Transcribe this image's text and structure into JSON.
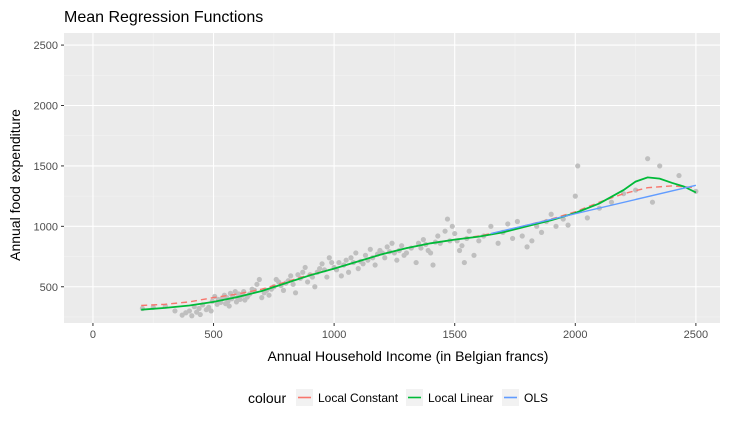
{
  "chart_data": {
    "type": "scatter",
    "title": "Mean Regression Functions",
    "xlabel": "Annual Household Income (in Belgian francs)",
    "ylabel": "Annual food expenditure",
    "xlim": [
      -120,
      2600
    ],
    "ylim": [
      200,
      2600
    ],
    "x_ticks": [
      0,
      500,
      1000,
      1500,
      2000,
      2500
    ],
    "y_ticks": [
      500,
      1000,
      1500,
      2000,
      2500
    ],
    "grid": true,
    "legend_position": "bottom",
    "legend_title": "colour",
    "points_color": "#bfbfbf",
    "points": [
      [
        205,
        320
      ],
      [
        250,
        330
      ],
      [
        300,
        340
      ],
      [
        340,
        300
      ],
      [
        370,
        265
      ],
      [
        385,
        285
      ],
      [
        400,
        300
      ],
      [
        410,
        260
      ],
      [
        420,
        335
      ],
      [
        430,
        290
      ],
      [
        440,
        320
      ],
      [
        445,
        270
      ],
      [
        455,
        350
      ],
      [
        470,
        310
      ],
      [
        480,
        330
      ],
      [
        490,
        300
      ],
      [
        495,
        380
      ],
      [
        505,
        420
      ],
      [
        515,
        355
      ],
      [
        520,
        395
      ],
      [
        530,
        370
      ],
      [
        535,
        400
      ],
      [
        545,
        430
      ],
      [
        550,
        360
      ],
      [
        555,
        410
      ],
      [
        560,
        380
      ],
      [
        565,
        340
      ],
      [
        570,
        445
      ],
      [
        575,
        400
      ],
      [
        580,
        420
      ],
      [
        590,
        460
      ],
      [
        595,
        375
      ],
      [
        600,
        410
      ],
      [
        605,
        440
      ],
      [
        610,
        395
      ],
      [
        620,
        430
      ],
      [
        625,
        460
      ],
      [
        630,
        390
      ],
      [
        640,
        415
      ],
      [
        650,
        440
      ],
      [
        660,
        480
      ],
      [
        670,
        470
      ],
      [
        680,
        520
      ],
      [
        690,
        560
      ],
      [
        700,
        410
      ],
      [
        710,
        450
      ],
      [
        720,
        470
      ],
      [
        730,
        430
      ],
      [
        740,
        480
      ],
      [
        750,
        500
      ],
      [
        760,
        560
      ],
      [
        770,
        540
      ],
      [
        780,
        510
      ],
      [
        790,
        470
      ],
      [
        800,
        530
      ],
      [
        810,
        550
      ],
      [
        820,
        590
      ],
      [
        830,
        520
      ],
      [
        840,
        450
      ],
      [
        850,
        600
      ],
      [
        860,
        570
      ],
      [
        870,
        620
      ],
      [
        880,
        660
      ],
      [
        890,
        540
      ],
      [
        900,
        600
      ],
      [
        910,
        580
      ],
      [
        920,
        500
      ],
      [
        930,
        620
      ],
      [
        940,
        650
      ],
      [
        950,
        690
      ],
      [
        960,
        640
      ],
      [
        970,
        580
      ],
      [
        980,
        740
      ],
      [
        990,
        700
      ],
      [
        1000,
        660
      ],
      [
        1010,
        640
      ],
      [
        1020,
        700
      ],
      [
        1030,
        590
      ],
      [
        1040,
        680
      ],
      [
        1050,
        720
      ],
      [
        1060,
        620
      ],
      [
        1070,
        740
      ],
      [
        1080,
        700
      ],
      [
        1090,
        780
      ],
      [
        1100,
        650
      ],
      [
        1110,
        710
      ],
      [
        1120,
        690
      ],
      [
        1130,
        760
      ],
      [
        1140,
        720
      ],
      [
        1150,
        810
      ],
      [
        1160,
        740
      ],
      [
        1170,
        680
      ],
      [
        1180,
        770
      ],
      [
        1190,
        800
      ],
      [
        1200,
        780
      ],
      [
        1210,
        740
      ],
      [
        1220,
        830
      ],
      [
        1230,
        790
      ],
      [
        1240,
        860
      ],
      [
        1250,
        780
      ],
      [
        1260,
        720
      ],
      [
        1270,
        800
      ],
      [
        1280,
        840
      ],
      [
        1290,
        760
      ],
      [
        1300,
        780
      ],
      [
        1320,
        820
      ],
      [
        1340,
        700
      ],
      [
        1350,
        860
      ],
      [
        1360,
        820
      ],
      [
        1370,
        890
      ],
      [
        1380,
        850
      ],
      [
        1390,
        800
      ],
      [
        1400,
        780
      ],
      [
        1410,
        680
      ],
      [
        1420,
        870
      ],
      [
        1430,
        920
      ],
      [
        1440,
        860
      ],
      [
        1460,
        960
      ],
      [
        1470,
        1060
      ],
      [
        1480,
        880
      ],
      [
        1490,
        1000
      ],
      [
        1500,
        940
      ],
      [
        1510,
        880
      ],
      [
        1520,
        800
      ],
      [
        1530,
        840
      ],
      [
        1540,
        700
      ],
      [
        1550,
        900
      ],
      [
        1560,
        960
      ],
      [
        1580,
        760
      ],
      [
        1600,
        880
      ],
      [
        1620,
        920
      ],
      [
        1650,
        1000
      ],
      [
        1680,
        860
      ],
      [
        1700,
        950
      ],
      [
        1720,
        1020
      ],
      [
        1740,
        900
      ],
      [
        1760,
        1040
      ],
      [
        1780,
        920
      ],
      [
        1800,
        830
      ],
      [
        1820,
        880
      ],
      [
        1840,
        1000
      ],
      [
        1860,
        950
      ],
      [
        1880,
        1040
      ],
      [
        1900,
        1100
      ],
      [
        1920,
        1000
      ],
      [
        1950,
        1060
      ],
      [
        1970,
        1010
      ],
      [
        2000,
        1250
      ],
      [
        2010,
        1500
      ],
      [
        2050,
        1070
      ],
      [
        2100,
        1150
      ],
      [
        2150,
        1200
      ],
      [
        2200,
        1270
      ],
      [
        2250,
        1300
      ],
      [
        2300,
        1560
      ],
      [
        2320,
        1200
      ],
      [
        2350,
        1500
      ],
      [
        2430,
        1420
      ],
      [
        2500,
        1290
      ]
    ],
    "series": [
      {
        "name": "Local Constant",
        "color": "#f8766d",
        "dash": true,
        "x": [
          200,
          300,
          400,
          500,
          600,
          700,
          800,
          900,
          1000,
          1100,
          1200,
          1300,
          1400,
          1500,
          1600,
          1700,
          1800,
          1900,
          2000,
          2100,
          2200,
          2300,
          2400,
          2500
        ],
        "y": [
          345,
          355,
          375,
          410,
          440,
          480,
          540,
          600,
          650,
          710,
          770,
          820,
          860,
          890,
          920,
          960,
          1010,
          1060,
          1120,
          1200,
          1270,
          1320,
          1335,
          1320
        ]
      },
      {
        "name": "Local Linear",
        "color": "#00ba38",
        "dash": false,
        "x": [
          200,
          300,
          400,
          500,
          600,
          700,
          800,
          900,
          1000,
          1100,
          1200,
          1300,
          1400,
          1500,
          1600,
          1700,
          1800,
          1900,
          2000,
          2100,
          2200,
          2250,
          2300,
          2350,
          2400,
          2450,
          2500
        ],
        "y": [
          310,
          325,
          345,
          375,
          415,
          465,
          530,
          595,
          650,
          710,
          770,
          820,
          860,
          890,
          915,
          950,
          1000,
          1050,
          1110,
          1190,
          1300,
          1370,
          1405,
          1395,
          1360,
          1330,
          1280
        ]
      },
      {
        "name": "OLS",
        "color": "#619cff",
        "dash": false,
        "x": [
          1650,
          2500
        ],
        "y": [
          940,
          1340
        ]
      }
    ]
  }
}
